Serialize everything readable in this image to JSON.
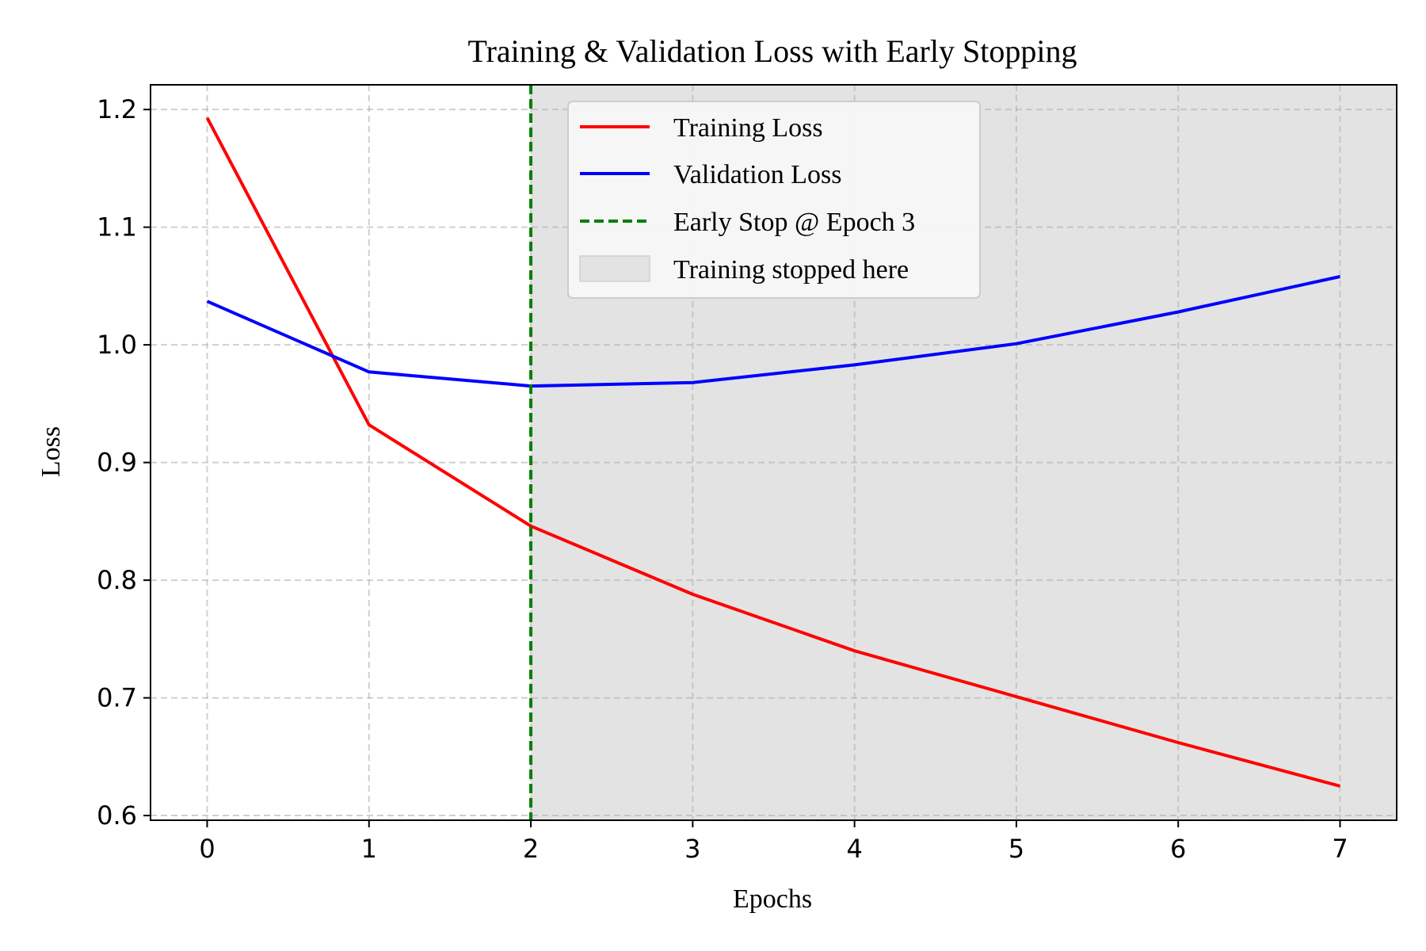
{
  "chart_data": {
    "type": "line",
    "title": "Training & Validation Loss with Early Stopping",
    "xlabel": "Epochs",
    "ylabel": "Loss",
    "x": [
      0,
      1,
      2,
      3,
      4,
      5,
      6,
      7
    ],
    "xticks": [
      "0",
      "1",
      "2",
      "3",
      "4",
      "5",
      "6",
      "7"
    ],
    "yticks": [
      "0.6",
      "0.7",
      "0.8",
      "0.9",
      "1.0",
      "1.1",
      "1.2"
    ],
    "xlim": [
      -0.35,
      7.35
    ],
    "ylim": [
      0.596,
      1.221
    ],
    "grid": true,
    "legend_position": "top-center",
    "series": [
      {
        "name": "Training Loss",
        "color": "#ff0000",
        "values": [
          1.193,
          0.932,
          0.846,
          0.788,
          0.74,
          0.701,
          0.662,
          0.625
        ]
      },
      {
        "name": "Validation Loss",
        "color": "#0000ff",
        "values": [
          1.037,
          0.977,
          0.965,
          0.968,
          0.983,
          1.001,
          1.028,
          1.058
        ]
      }
    ],
    "vline": {
      "label": "Early Stop @ Epoch 3",
      "x": 2,
      "color": "#008000",
      "style": "dashed"
    },
    "shaded_region": {
      "label": "Training stopped here",
      "x_start": 2,
      "x_end": 7.35,
      "color": "#e3e3e3"
    }
  }
}
